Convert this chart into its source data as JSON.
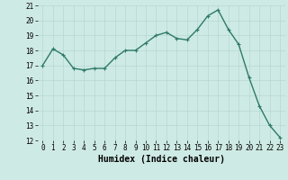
{
  "x": [
    0,
    1,
    2,
    3,
    4,
    5,
    6,
    7,
    8,
    9,
    10,
    11,
    12,
    13,
    14,
    15,
    16,
    17,
    18,
    19,
    20,
    21,
    22,
    23
  ],
  "y": [
    17.0,
    18.1,
    17.7,
    16.8,
    16.7,
    16.8,
    16.8,
    17.5,
    18.0,
    18.0,
    18.5,
    19.0,
    19.2,
    18.8,
    18.7,
    19.4,
    20.3,
    20.7,
    19.4,
    18.4,
    16.2,
    14.3,
    13.0,
    12.2
  ],
  "xlabel": "Humidex (Indice chaleur)",
  "ylim": [
    12,
    21
  ],
  "xlim_min": -0.5,
  "xlim_max": 23.5,
  "yticks": [
    12,
    13,
    14,
    15,
    16,
    17,
    18,
    19,
    20,
    21
  ],
  "xticks": [
    0,
    1,
    2,
    3,
    4,
    5,
    6,
    7,
    8,
    9,
    10,
    11,
    12,
    13,
    14,
    15,
    16,
    17,
    18,
    19,
    20,
    21,
    22,
    23
  ],
  "line_color": "#2d7a68",
  "bg_color": "#ceeae4",
  "grid_color": "#b8d8d2",
  "fig_bg": "#ceeae4",
  "tick_fontsize": 5.5,
  "xlabel_fontsize": 7.0,
  "linewidth": 1.0,
  "markersize": 3.0
}
